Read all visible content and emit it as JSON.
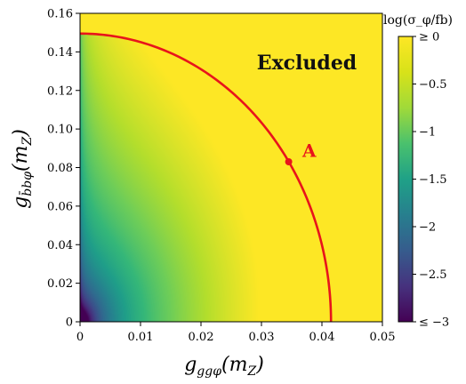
{
  "chart_data": {
    "type": "heatmap",
    "title": "",
    "xlabel": "g_{ggφ}(m_Z)",
    "ylabel": "g_{b̄bφ}(m_Z)",
    "xlim": [
      0,
      0.05
    ],
    "ylim": [
      0,
      0.16
    ],
    "x_ticks": [
      0,
      0.01,
      0.02,
      0.03,
      0.04,
      0.05
    ],
    "x_tick_labels": [
      "0",
      "0.01",
      "0.02",
      "0.03",
      "0.04",
      "0.05"
    ],
    "y_ticks": [
      0,
      0.02,
      0.04,
      0.06,
      0.08,
      0.1,
      0.12,
      0.14,
      0.16
    ],
    "y_tick_labels": [
      "0",
      "0.02",
      "0.04",
      "0.06",
      "0.08",
      "0.10",
      "0.12",
      "0.14",
      "0.16"
    ],
    "colorbar": {
      "label": "log(σ_φ/fb)",
      "range": [
        -3,
        0
      ],
      "colormap": "viridis",
      "ticks": [
        0,
        -0.5,
        -1,
        -1.5,
        -2,
        -2.5,
        -3
      ],
      "tick_labels": [
        "≥ 0",
        "−0.5",
        "−1",
        "−1.5",
        "−2",
        "−2.5",
        "≤ −3"
      ]
    },
    "exclusion_contour": {
      "color": "#e8141b",
      "shape": "ellipse-quarter",
      "x_intercept": 0.0415,
      "y_intercept": 0.1495
    },
    "annotations": [
      {
        "text": "Excluded",
        "x": 0.0375,
        "y": 0.131
      },
      {
        "text": "A",
        "x": 0.0379,
        "y": 0.0855
      }
    ],
    "marked_point": {
      "label": "A",
      "x": 0.0345,
      "y": 0.083
    }
  }
}
